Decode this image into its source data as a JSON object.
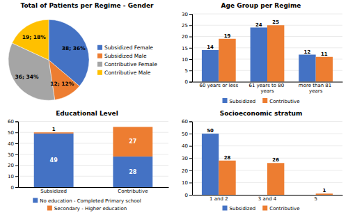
{
  "chart_data": [
    {
      "type": "pie",
      "title": "Total of Patients per Regime - Gender",
      "categories": [
        "Subsidized Female",
        "Subsidized Male",
        "Contributive Female",
        "Contributive Male"
      ],
      "values": [
        38,
        12,
        36,
        19
      ],
      "value_labels": [
        "38; 36%",
        "12; 12%",
        "36; 34%",
        "19; 18%"
      ],
      "colors": [
        "#4472C4",
        "#ED7D31",
        "#A5A5A5",
        "#FFC000"
      ],
      "data_labels": true,
      "legend": "right"
    },
    {
      "type": "bar",
      "title": "Age Group per Regime",
      "categories": [
        "60 years or less",
        "61 years to 80 years",
        "more than 81 years"
      ],
      "series": [
        {
          "name": "Subsidized",
          "color": "#4472C4",
          "values": [
            14,
            24,
            12
          ]
        },
        {
          "name": "Contributive",
          "color": "#ED7D31",
          "values": [
            19,
            25,
            11
          ]
        }
      ],
      "ylim": [
        0,
        30
      ],
      "yticks": [
        0,
        5,
        10,
        15,
        20,
        25,
        30
      ],
      "grid": true,
      "data_labels": true,
      "legend": "bottom"
    },
    {
      "type": "bar",
      "title": "Educational Level",
      "categories": [
        "Subsidized",
        "Contributive"
      ],
      "series": [
        {
          "name": "No education - Completed Primary school",
          "color": "#4472C4",
          "values": [
            49,
            28
          ]
        },
        {
          "name": "Secondary - Higher education",
          "color": "#ED7D31",
          "values": [
            1,
            27
          ]
        }
      ],
      "stacked": true,
      "ylim": [
        0,
        60
      ],
      "yticks": [
        0,
        10,
        20,
        30,
        40,
        50,
        60
      ],
      "grid": true,
      "data_labels": true,
      "legend": "bottom"
    },
    {
      "type": "bar",
      "title": "Socioeconomic stratum",
      "categories": [
        "1 and 2",
        "3 and 4",
        "5"
      ],
      "series": [
        {
          "name": "Subsidized",
          "color": "#4472C4",
          "values": [
            50,
            0,
            0
          ]
        },
        {
          "name": "Contributive",
          "color": "#ED7D31",
          "values": [
            28,
            26,
            1
          ]
        }
      ],
      "ylim": [
        0,
        60
      ],
      "yticks": [
        0,
        10,
        20,
        30,
        40,
        50,
        60
      ],
      "grid": true,
      "data_labels": true,
      "legend": "bottom"
    }
  ]
}
